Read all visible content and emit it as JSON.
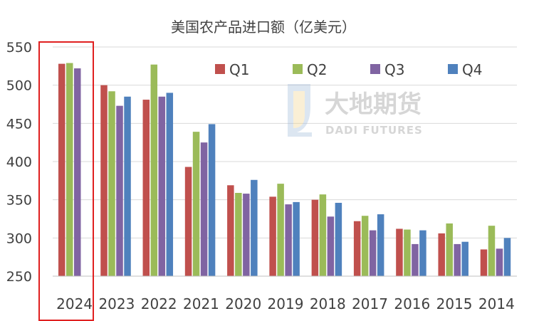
{
  "chart_data": {
    "type": "bar",
    "title": "美国农产品进口额（亿美元）",
    "xlabel": "",
    "ylabel": "",
    "ylim": [
      250,
      550
    ],
    "yticks": [
      250,
      300,
      350,
      400,
      450,
      500,
      550
    ],
    "grid": true,
    "legend_position": "top-right",
    "categories": [
      "2024",
      "2023",
      "2022",
      "2021",
      "2020",
      "2019",
      "2018",
      "2017",
      "2016",
      "2015",
      "2014"
    ],
    "series": [
      {
        "name": "Q1",
        "color": "#C0504D",
        "values": [
          528,
          500,
          481,
          393,
          369,
          354,
          350,
          322,
          312,
          306,
          285
        ]
      },
      {
        "name": "Q2",
        "color": "#9BBB59",
        "values": [
          529,
          492,
          527,
          439,
          359,
          371,
          357,
          329,
          311,
          319,
          316
        ]
      },
      {
        "name": "Q3",
        "color": "#8064A2",
        "values": [
          522,
          473,
          485,
          425,
          358,
          344,
          328,
          310,
          292,
          292,
          286
        ]
      },
      {
        "name": "Q4",
        "color": "#4F81BD",
        "values": [
          null,
          485,
          490,
          449,
          376,
          347,
          346,
          331,
          310,
          295,
          300
        ]
      }
    ],
    "highlight_category": "2024",
    "highlight_color": "#E02020"
  },
  "watermark": {
    "brand_cn": "大地期货",
    "brand_en": "DADI FUTURES"
  }
}
